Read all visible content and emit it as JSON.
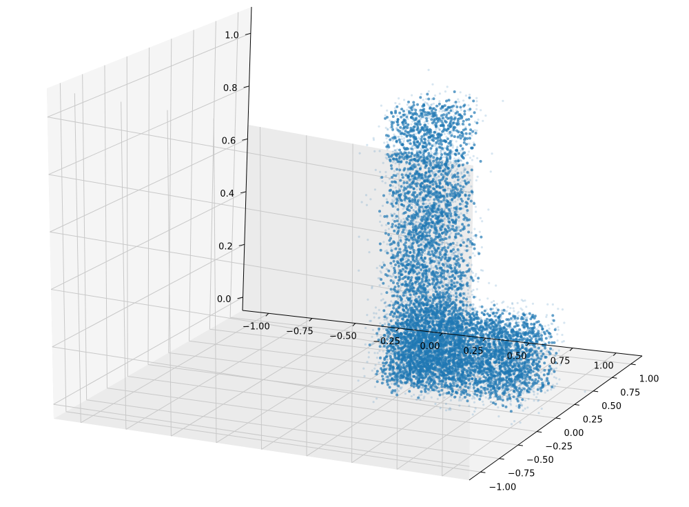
{
  "chart_data": {
    "type": "scatter",
    "subtype": "3d-scatter",
    "title": "",
    "xlabel": "",
    "ylabel": "",
    "zlabel": "",
    "xlim": [
      -1.15,
      1.15
    ],
    "ylim": [
      -1.15,
      1.15
    ],
    "zlim": [
      -0.05,
      1.1
    ],
    "x_ticks": [
      -1.0,
      -0.75,
      -0.5,
      -0.25,
      0.0,
      0.25,
      0.5,
      0.75,
      1.0
    ],
    "x_tick_labels": [
      "−1.00",
      "−0.75",
      "−0.50",
      "−0.25",
      "0.00",
      "0.25",
      "0.50",
      "0.75",
      "1.00"
    ],
    "y_ticks": [
      -1.0,
      -0.75,
      -0.5,
      -0.25,
      0.0,
      0.25,
      0.5,
      0.75,
      1.0
    ],
    "y_tick_labels": [
      "−1.00",
      "−0.75",
      "−0.50",
      "−0.25",
      "0.00",
      "0.25",
      "0.50",
      "0.75",
      "1.00"
    ],
    "z_ticks": [
      0.0,
      0.2,
      0.4,
      0.6,
      0.8,
      1.0
    ],
    "z_tick_labels": [
      "0.0",
      "0.2",
      "0.4",
      "0.6",
      "0.8",
      "1.0"
    ],
    "grid": true,
    "legend": "none",
    "marker_color": "#1f77b4",
    "pane_color": "#f2f2f2",
    "grid_color": "#c8c8c8",
    "series": [
      {
        "shape": "letter-L point cloud",
        "vertical_bar": {
          "x_range": [
            0.2,
            0.55
          ],
          "y_range": [
            -0.1,
            0.35
          ],
          "z_range": [
            0.0,
            1.0
          ]
        },
        "horizontal_bar": {
          "x_range": [
            0.2,
            1.0
          ],
          "y_range": [
            -0.15,
            0.35
          ],
          "z_range": [
            0.0,
            0.25
          ]
        }
      }
    ]
  }
}
